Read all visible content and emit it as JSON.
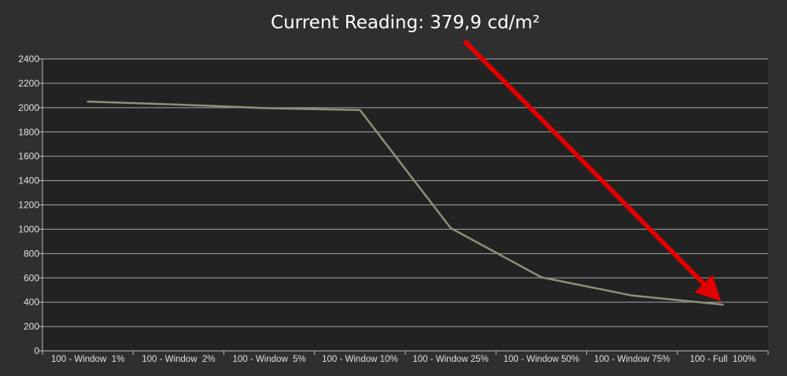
{
  "chart_data": {
    "type": "line",
    "title": "Current Reading: 379,9 cd/m²",
    "xlabel": "",
    "ylabel": "",
    "ylim": [
      0,
      2400
    ],
    "y_ticks": [
      0,
      200,
      400,
      600,
      800,
      1000,
      1200,
      1400,
      1600,
      1800,
      2000,
      2200,
      2400
    ],
    "categories": [
      "100 - Window  1%",
      "100 - Window  2%",
      "100 - Window  5%",
      "100 - Window 10%",
      "100 - Window 25%",
      "100 - Window 50%",
      "100 - Window 75%",
      "100 - Full  100%"
    ],
    "series": [
      {
        "values": [
          2050,
          2025,
          1995,
          1980,
          1010,
          605,
          455,
          380
        ],
        "color": "#8f8f78"
      }
    ],
    "grid": true,
    "legend": "none",
    "annotations": [
      {
        "type": "arrow",
        "color": "#e00000",
        "points_to": "100 - Full  100%"
      }
    ]
  },
  "colors": {
    "background": "#2f2f2f",
    "plot_area": "#222222",
    "gridline": "#bdbdbd",
    "text": "#e0e0e0",
    "arrow": "#e00000"
  }
}
